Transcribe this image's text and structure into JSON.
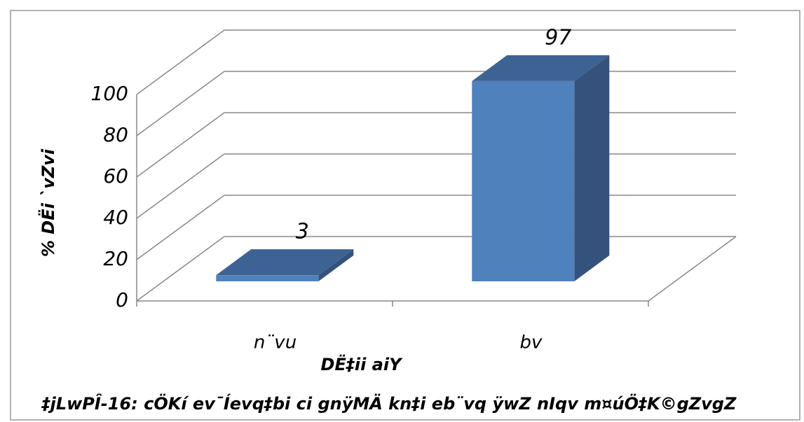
{
  "chart_data": {
    "type": "bar3d",
    "caption": "‡jLwPÎ-16: cÖKí ev¯Íevq‡bi ci gnÿMÄ kn‡i eb¨vq ÿwZ nIqv m¤úÖ‡K©gZvgZ",
    "y_label": "% DËi `vZvi",
    "x_label": "DË‡ii aiY",
    "categories": [
      "n¨vu",
      "bv"
    ],
    "values": [
      3,
      97
    ],
    "color": "#4f81bd",
    "ylim": [
      0,
      100
    ],
    "yticks": [
      0,
      20,
      40,
      60,
      80,
      100
    ],
    "grid": true
  }
}
